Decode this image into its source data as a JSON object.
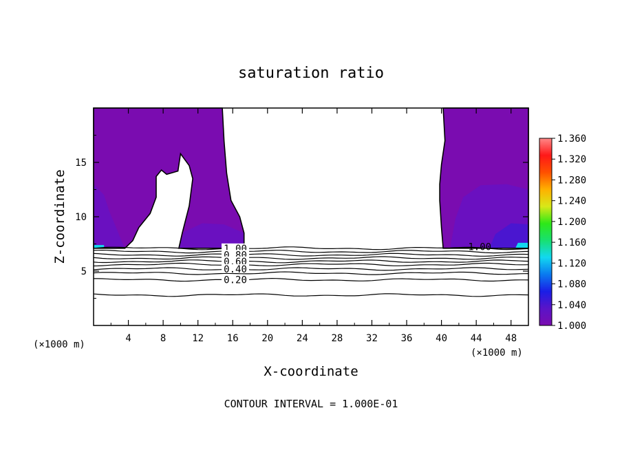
{
  "chart_data": {
    "type": "heatmap",
    "title": "saturation ratio",
    "xlabel": "X-coordinate",
    "ylabel": "Z-coordinate",
    "x_unit_left": "(×1000 m)",
    "x_unit_right": "(×1000 m)",
    "footer": "CONTOUR INTERVAL = 1.000E-01",
    "xlim": [
      0,
      50
    ],
    "ylim": [
      0,
      20
    ],
    "x_ticks": [
      4,
      8,
      12,
      16,
      20,
      24,
      28,
      32,
      36,
      40,
      44,
      48
    ],
    "y_ticks": [
      5,
      10,
      15
    ],
    "contours": [
      {
        "level": 1.0,
        "label": "1.00"
      },
      {
        "level": 0.9,
        "label": ""
      },
      {
        "level": 0.8,
        "label": "0.80"
      },
      {
        "level": 0.7,
        "label": ""
      },
      {
        "level": 0.6,
        "label": "0.60"
      },
      {
        "level": 0.5,
        "label": ""
      },
      {
        "level": 0.4,
        "label": "0.40"
      },
      {
        "level": 0.3,
        "label": ""
      },
      {
        "level": 0.2,
        "label": "0.20"
      },
      {
        "level": 0.1,
        "label": ""
      }
    ],
    "contour_z": [
      7.1,
      6.8,
      6.5,
      6.2,
      5.9,
      5.6,
      5.2,
      4.8,
      4.2,
      2.8
    ],
    "right_label": "1.00",
    "colorbar": {
      "min": 1.0,
      "max": 1.36,
      "ticks": [
        "1.000",
        "1.040",
        "1.080",
        "1.120",
        "1.160",
        "1.200",
        "1.240",
        "1.280",
        "1.320",
        "1.360"
      ],
      "colors": [
        "#7a0cb0",
        "#5a14c8",
        "#1a1ee6",
        "#0a7af0",
        "#12d8f0",
        "#18e070",
        "#2ee818",
        "#d8e818",
        "#ffb000",
        "#ff5000",
        "#ff1818",
        "#ff8888"
      ]
    },
    "supersaturated_regions": [
      {
        "name": "left-region",
        "outline": [
          [
            0,
            20
          ],
          [
            14.8,
            20
          ],
          [
            15.0,
            17
          ],
          [
            15.3,
            14
          ],
          [
            15.8,
            11.5
          ],
          [
            16.8,
            10
          ],
          [
            17.3,
            8.5
          ],
          [
            17.3,
            7.1
          ],
          [
            9.8,
            7.1
          ],
          [
            10.2,
            8.5
          ],
          [
            11.0,
            11
          ],
          [
            11.4,
            13.5
          ],
          [
            11.0,
            14.7
          ],
          [
            10.0,
            15.8
          ],
          [
            9.7,
            14.2
          ],
          [
            8.4,
            13.9
          ],
          [
            7.8,
            14.3
          ],
          [
            7.2,
            13.7
          ],
          [
            7.2,
            11.8
          ],
          [
            6.5,
            10.3
          ],
          [
            5.2,
            9.0
          ],
          [
            4.5,
            7.8
          ],
          [
            3.6,
            7.1
          ],
          [
            0,
            7.1
          ]
        ],
        "base_color": "#7a0cb0",
        "patches": [
          {
            "outline": [
              [
                0,
                7.1
              ],
              [
                0,
                13
              ],
              [
                1.2,
                12
              ],
              [
                1.8,
                10.5
              ],
              [
                2.6,
                9.0
              ],
              [
                3.2,
                7.8
              ],
              [
                3.6,
                7.1
              ]
            ],
            "color": "#6a10c0"
          },
          {
            "outline": [
              [
                9.8,
                7.1
              ],
              [
                10.4,
                8.6
              ],
              [
                12.5,
                9.4
              ],
              [
                15.0,
                9.3
              ],
              [
                17.3,
                8.5
              ],
              [
                17.3,
                7.1
              ]
            ],
            "color": "#6a10c0"
          },
          {
            "outline": [
              [
                0,
                7.1
              ],
              [
                0,
                7.4
              ],
              [
                1.2,
                7.4
              ],
              [
                1.2,
                7.1
              ]
            ],
            "color": "#12d8f0"
          }
        ]
      },
      {
        "name": "right-region",
        "outline": [
          [
            40.2,
            20
          ],
          [
            50,
            20
          ],
          [
            50,
            7.1
          ],
          [
            40.2,
            7.1
          ],
          [
            40.0,
            9.0
          ],
          [
            39.8,
            11.5
          ],
          [
            39.8,
            13.0
          ],
          [
            40.0,
            14.8
          ],
          [
            40.4,
            17
          ],
          [
            40.2,
            20
          ]
        ],
        "base_color": "#7a0cb0",
        "patches": [
          {
            "outline": [
              [
                41,
                7.1
              ],
              [
                41.6,
                9.8
              ],
              [
                42.5,
                11.8
              ],
              [
                44.5,
                12.9
              ],
              [
                47.5,
                13.0
              ],
              [
                50,
                12.5
              ],
              [
                50,
                7.1
              ]
            ],
            "color": "#6a10c0"
          },
          {
            "outline": [
              [
                45.5,
                7.1
              ],
              [
                46.2,
                8.4
              ],
              [
                48.0,
                9.4
              ],
              [
                50,
                9.3
              ],
              [
                50,
                7.1
              ]
            ],
            "color": "#4a16d0"
          },
          {
            "outline": [
              [
                48.5,
                7.1
              ],
              [
                48.8,
                7.6
              ],
              [
                50,
                7.6
              ],
              [
                50,
                7.1
              ]
            ],
            "color": "#12d8f0"
          }
        ]
      }
    ]
  }
}
